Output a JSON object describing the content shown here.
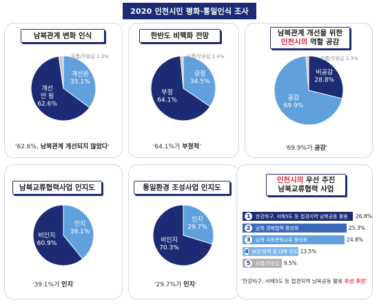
{
  "page_title": "2020 인천시민 평화·통일인식 조사",
  "panels": [
    {
      "id": "p1",
      "title": "남북관계 변화 인식",
      "caption": {
        "pre": "'62.6%, ",
        "hl": "남북관계 개선되지 않았다",
        "post": "'"
      },
      "chart_data": {
        "type": "pie",
        "slices": [
          {
            "label": "개선된",
            "value": 35.1,
            "color": "#5fa0dd"
          },
          {
            "label": "개선 안 됨",
            "value": 62.6,
            "color": "#1c2b73"
          },
          {
            "label": "모름/무응답",
            "value": 2.3,
            "color": "#c9c9c9"
          }
        ]
      }
    },
    {
      "id": "p2",
      "title": "한반도 비핵화 전망",
      "caption": {
        "pre": "'64.1%가 ",
        "hl": "부정적",
        "post": "'"
      },
      "chart_data": {
        "type": "pie",
        "slices": [
          {
            "label": "긍정",
            "value": 34.5,
            "color": "#5fa0dd"
          },
          {
            "label": "부정",
            "value": 64.1,
            "color": "#1c2b73"
          },
          {
            "label": "모름/무응답",
            "value": 1.4,
            "color": "#c9c9c9"
          }
        ]
      }
    },
    {
      "id": "p3",
      "title_line1": "남북관계 개선을 위한",
      "title_line2_red": "인천시의",
      "title_line2_rest": " 역할 공감",
      "caption": {
        "pre": "'69.9%가 ",
        "hl": "공감",
        "post": "'"
      },
      "chart_data": {
        "type": "pie",
        "slices": [
          {
            "label": "비공감",
            "value": 28.8,
            "color": "#1c2b73"
          },
          {
            "label": "공감",
            "value": 69.9,
            "color": "#5fa0dd"
          },
          {
            "label": "모름/무응답",
            "value": 1.3,
            "color": "#c9c9c9"
          }
        ]
      }
    },
    {
      "id": "p4",
      "title": "남북교류협력사업 인지도",
      "caption": {
        "pre": "'39.1%가 ",
        "hl": "인지",
        "post": "'"
      },
      "chart_data": {
        "type": "pie",
        "slices": [
          {
            "label": "인지",
            "value": 39.1,
            "color": "#5fa0dd"
          },
          {
            "label": "비인지",
            "value": 60.9,
            "color": "#1c2b73"
          }
        ]
      }
    },
    {
      "id": "p5",
      "title": "통일환경 조성사업 인지도",
      "caption": {
        "pre": "'29.7%가 ",
        "hl": "인지",
        "post": "'"
      },
      "chart_data": {
        "type": "pie",
        "slices": [
          {
            "label": "인지",
            "value": 29.7,
            "color": "#5fa0dd"
          },
          {
            "label": "비인지",
            "value": 70.3,
            "color": "#1c2b73"
          }
        ]
      }
    },
    {
      "id": "p6",
      "title_line1_red": "인천시의",
      "title_line1_rest": " 우선 추진",
      "title_line2": "남북교류협력 사업",
      "caption": {
        "pre": "'한강하구, 서해5도 등 접경지역 남북공동 활용 ",
        "hl": "우선 추진",
        "post": "'"
      },
      "chart_data": {
        "type": "bar",
        "orientation": "horizontal",
        "bars": [
          {
            "rank": "1",
            "label": "한강하구, 서해5도 등 접경지역 남북공동 활용",
            "value": 26.8,
            "color": "#1c2b73"
          },
          {
            "rank": "2",
            "label": "남북 경제협력 활성화",
            "value": 25.3,
            "color": "#3a67b8"
          },
          {
            "rank": "3",
            "label": "남북 사회문화교류 활성화",
            "value": 24.8,
            "color": "#5fa0dd"
          },
          {
            "rank": "4",
            "label": "보건·방역 등 대북 인도적 지원",
            "value": 13.5,
            "color": "#7fb8e8"
          },
          {
            "rank": "5",
            "label": "모름/무응답",
            "value": 9.5,
            "color": "#b0b0b0"
          }
        ]
      }
    }
  ]
}
